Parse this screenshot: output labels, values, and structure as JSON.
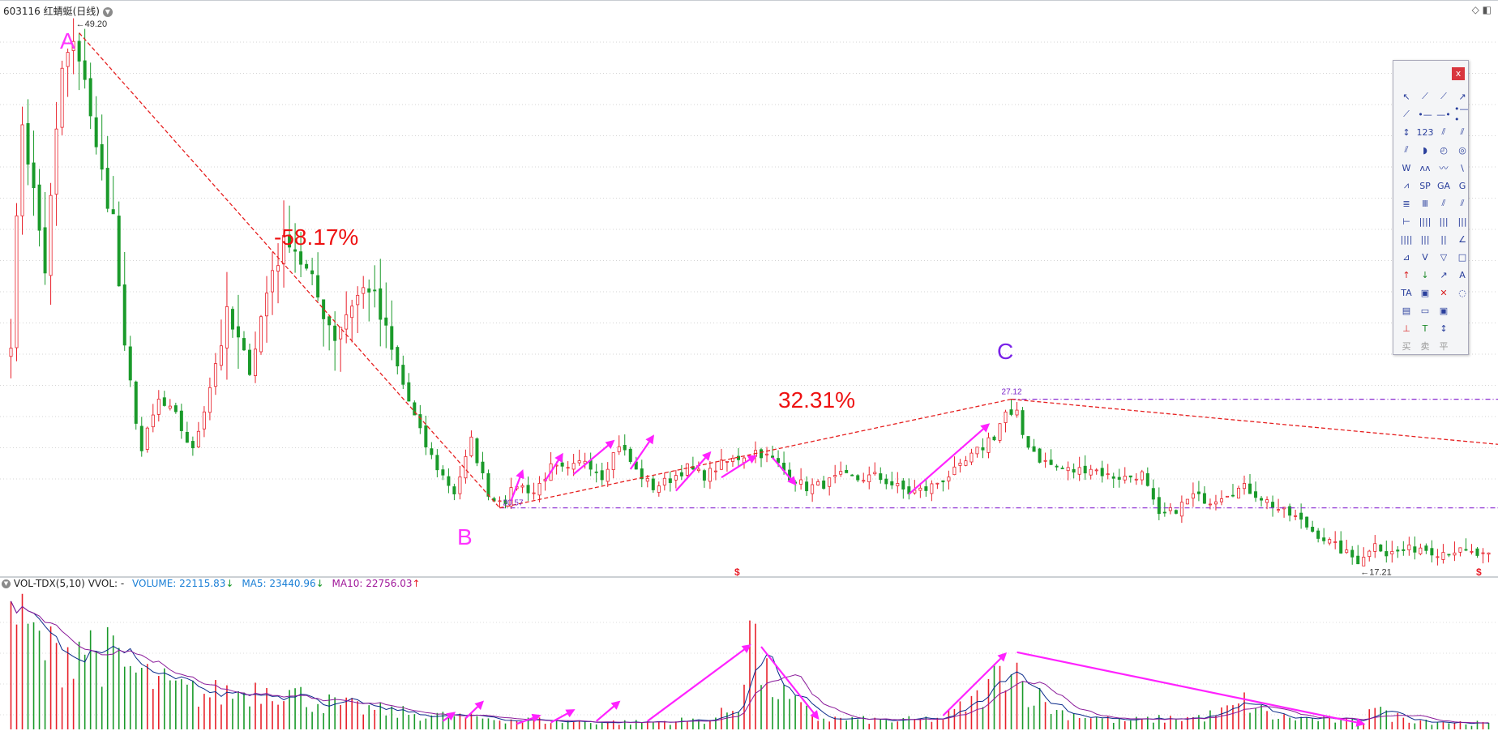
{
  "header": {
    "symbol_title": "603116 红蜻蜓(日线)",
    "indicator": "VOL-TDX(5,10)",
    "vvol": "VVOL: -",
    "volume": "VOLUME: 22115.83",
    "ma5": "MA5: 23440.96",
    "ma10": "MA10: 22756.03",
    "volume_arrow": "↓",
    "ma5_arrow": "↓",
    "ma10_arrow": "↑"
  },
  "annotations": {
    "point_a": "A",
    "point_b": "B",
    "point_c": "C",
    "decline_pct": "-58.17%",
    "rise_pct": "32.31%",
    "price_high": "49.20",
    "price_b": "20.57",
    "price_c": "27.12",
    "price_low": "17.21",
    "marker": "$"
  },
  "colors": {
    "up": "#e8202a",
    "down": "#1a9a2a",
    "ma5": "#0a2a8a",
    "ma10": "#8a1a9a",
    "trend_line": "#e62020",
    "level_line": "#8a2ad0",
    "arrow": "#ff22ff",
    "annotation_red": "#ee1111",
    "point_label_magenta": "#ff33ff",
    "point_label_purple": "#7a22e8"
  },
  "toolbox": {
    "close_label": "x",
    "tools": [
      "↖",
      "⟋",
      "⟋",
      "↗",
      "⟋",
      "•—",
      "—•",
      "•—•",
      "↕",
      "123",
      "⫽",
      "⫽",
      "⫽",
      "◗",
      "◴",
      "◎",
      "W",
      "ʌʌ",
      "〰",
      "\\",
      "⩘",
      "SP",
      "GA",
      "G",
      "≣",
      "Ⅲ",
      "⫽",
      "⫽",
      "⊢",
      "||||",
      "|||",
      "|||",
      "||||",
      "|||",
      "||",
      "∠",
      "⊿",
      "V",
      "▽",
      "□",
      "↑",
      "↓",
      "↗",
      "A",
      "TA",
      "▣",
      "✕",
      "◌",
      "▤",
      "▭",
      "▣",
      "",
      "⊥",
      "T",
      "↕",
      "",
      "买",
      "卖",
      "平",
      ""
    ]
  },
  "chart_data": {
    "type": "candlestick",
    "title": "603116 红蜻蜓(日线)",
    "key_prices": {
      "A_high": 49.2,
      "B_low": 20.57,
      "C_high": 27.12,
      "final_low": 17.21
    },
    "moves": {
      "A_to_B_pct": -58.17,
      "B_to_C_pct": 32.31
    },
    "price_range": [
      16.5,
      50.5
    ],
    "horizontal_levels": [
      27.12,
      20.57
    ],
    "anchors": [
      [
        0,
        31
      ],
      [
        2,
        44
      ],
      [
        6,
        35
      ],
      [
        9,
        47
      ],
      [
        12,
        49.2
      ],
      [
        15,
        42
      ],
      [
        18,
        38
      ],
      [
        20,
        30
      ],
      [
        23,
        24
      ],
      [
        26,
        27
      ],
      [
        29,
        26
      ],
      [
        32,
        24
      ],
      [
        35,
        28
      ],
      [
        38,
        32
      ],
      [
        42,
        29
      ],
      [
        46,
        35
      ],
      [
        49,
        37
      ],
      [
        53,
        34
      ],
      [
        57,
        31
      ],
      [
        60,
        33
      ],
      [
        63,
        34
      ],
      [
        66,
        31
      ],
      [
        69,
        28
      ],
      [
        72,
        25
      ],
      [
        75,
        23
      ],
      [
        78,
        21.5
      ],
      [
        81,
        24.5
      ],
      [
        84,
        21.5
      ],
      [
        86,
        20.57
      ],
      [
        89,
        22
      ],
      [
        92,
        21.5
      ],
      [
        95,
        23
      ],
      [
        98,
        22.8
      ],
      [
        101,
        23.5
      ],
      [
        104,
        22.5
      ],
      [
        107,
        24.5
      ],
      [
        110,
        22.8
      ],
      [
        113,
        21.8
      ],
      [
        116,
        22.3
      ],
      [
        119,
        23
      ],
      [
        122,
        22.5
      ],
      [
        125,
        23.2
      ],
      [
        128,
        23.6
      ],
      [
        131,
        24
      ],
      [
        134,
        23.5
      ],
      [
        137,
        22.5
      ],
      [
        140,
        21.8
      ],
      [
        143,
        22
      ],
      [
        146,
        22.5
      ],
      [
        149,
        22.3
      ],
      [
        152,
        22.5
      ],
      [
        155,
        22
      ],
      [
        158,
        21.5
      ],
      [
        161,
        21.7
      ],
      [
        164,
        22.3
      ],
      [
        167,
        23
      ],
      [
        170,
        24
      ],
      [
        173,
        25
      ],
      [
        175,
        26.3
      ],
      [
        176,
        27.12
      ],
      [
        178,
        25
      ],
      [
        181,
        23.5
      ],
      [
        184,
        23
      ],
      [
        187,
        22.8
      ],
      [
        190,
        23
      ],
      [
        193,
        22.5
      ],
      [
        196,
        22.4
      ],
      [
        199,
        22.6
      ],
      [
        202,
        20
      ],
      [
        205,
        20.5
      ],
      [
        208,
        21.3
      ],
      [
        211,
        21
      ],
      [
        214,
        21.5
      ],
      [
        217,
        21.8
      ],
      [
        220,
        21.2
      ],
      [
        223,
        20.5
      ],
      [
        226,
        20
      ],
      [
        229,
        19.2
      ],
      [
        232,
        18.5
      ],
      [
        235,
        17.8
      ],
      [
        238,
        17.21
      ],
      [
        240,
        18.6
      ],
      [
        242,
        17.8
      ],
      [
        245,
        18
      ],
      [
        248,
        18.2
      ],
      [
        251,
        17.9
      ],
      [
        254,
        18
      ],
      [
        257,
        17.8
      ],
      [
        260,
        17.6
      ]
    ],
    "volume_anchors": [
      [
        0,
        1.0
      ],
      [
        2,
        0.72
      ],
      [
        8,
        0.52
      ],
      [
        12,
        0.65
      ],
      [
        16,
        0.55
      ],
      [
        22,
        0.4
      ],
      [
        28,
        0.3
      ],
      [
        34,
        0.25
      ],
      [
        40,
        0.27
      ],
      [
        46,
        0.32
      ],
      [
        52,
        0.22
      ],
      [
        58,
        0.17
      ],
      [
        66,
        0.13
      ],
      [
        74,
        0.1
      ],
      [
        84,
        0.08
      ],
      [
        95,
        0.06
      ],
      [
        110,
        0.05
      ],
      [
        123,
        0.07
      ],
      [
        128,
        0.17
      ],
      [
        130,
        0.84
      ],
      [
        132,
        0.4
      ],
      [
        137,
        0.2
      ],
      [
        142,
        0.08
      ],
      [
        155,
        0.06
      ],
      [
        164,
        0.08
      ],
      [
        170,
        0.22
      ],
      [
        174,
        0.4
      ],
      [
        176,
        0.6
      ],
      [
        178,
        0.32
      ],
      [
        184,
        0.13
      ],
      [
        195,
        0.06
      ],
      [
        210,
        0.09
      ],
      [
        215,
        0.15
      ],
      [
        217,
        0.2
      ],
      [
        222,
        0.09
      ],
      [
        232,
        0.07
      ],
      [
        238,
        0.05
      ],
      [
        239,
        0.22
      ],
      [
        242,
        0.1
      ],
      [
        250,
        0.06
      ],
      [
        255,
        0.05
      ],
      [
        260,
        0.04
      ]
    ]
  }
}
